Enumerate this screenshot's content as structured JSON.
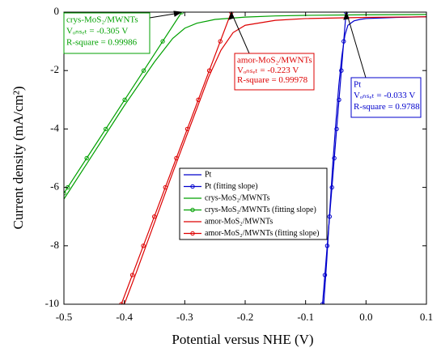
{
  "chart_data": {
    "type": "line",
    "xlabel": "Potential versus NHE (V)",
    "ylabel": "Current density (mA/cm²)",
    "xlim": [
      -0.5,
      0.1
    ],
    "xticks": [
      -0.5,
      -0.4,
      -0.3,
      -0.2,
      -0.1,
      {
        "value": 0,
        "label": "0.0"
      },
      0.1
    ],
    "ylim": [
      -10,
      0
    ],
    "yticks": [
      -10,
      -8,
      -6,
      -4,
      -2,
      0
    ],
    "series": [
      {
        "name": "Pt",
        "color": "#0000cc",
        "x": [
          -0.07,
          -0.065,
          -0.06,
          -0.055,
          -0.05,
          -0.045,
          -0.04,
          -0.035,
          -0.03,
          -0.02,
          -0.01,
          0,
          0.05,
          0.1
        ],
        "values": [
          -10,
          -8.5,
          -6.8,
          -5.2,
          -3.8,
          -2.5,
          -1.5,
          -0.8,
          -0.45,
          -0.3,
          -0.25,
          -0.22,
          -0.18,
          -0.16
        ]
      },
      {
        "name": "Pt (fitting slope)",
        "color": "#0000cc",
        "marker": "circle",
        "x": [
          -0.033,
          -0.0369,
          -0.0408,
          -0.0447,
          -0.0486,
          -0.0525,
          -0.0564,
          -0.0603,
          -0.0642,
          -0.0681,
          -0.072
        ],
        "values": [
          0,
          -1,
          -2,
          -3,
          -4,
          -5,
          -6,
          -7,
          -8,
          -9,
          -10
        ]
      },
      {
        "name": "crys-MoS₂/MWNTs",
        "color": "#00a000",
        "x": [
          -0.5,
          -0.45,
          -0.4,
          -0.35,
          -0.32,
          -0.3,
          -0.28,
          -0.25,
          -0.2,
          -0.15,
          -0.1,
          0,
          0.1
        ],
        "values": [
          -6.4,
          -4.8,
          -3.2,
          -1.7,
          -0.9,
          -0.55,
          -0.38,
          -0.25,
          -0.17,
          -0.13,
          -0.11,
          -0.09,
          -0.08
        ]
      },
      {
        "name": "crys-MoS₂/MWNTs (fitting slope)",
        "color": "#00a000",
        "marker": "circle",
        "x": [
          -0.305,
          -0.3365,
          -0.3679,
          -0.3994,
          -0.4308,
          -0.4623,
          -0.4937,
          -0.5
        ],
        "values": [
          0,
          -1,
          -2,
          -3,
          -4,
          -5,
          -6,
          -6.2
        ]
      },
      {
        "name": "amor-MoS₂/MWNTs",
        "color": "#dd0000",
        "x": [
          -0.4,
          -0.38,
          -0.35,
          -0.32,
          -0.3,
          -0.28,
          -0.26,
          -0.24,
          -0.22,
          -0.2,
          -0.15,
          -0.1,
          0,
          0.1
        ],
        "values": [
          -10,
          -8.9,
          -7.2,
          -5.5,
          -4.4,
          -3.3,
          -2.2,
          -1.3,
          -0.7,
          -0.45,
          -0.28,
          -0.22,
          -0.18,
          -0.16
        ]
      },
      {
        "name": "amor-MoS₂/MWNTs (fitting slope)",
        "color": "#dd0000",
        "marker": "circle",
        "x": [
          -0.223,
          -0.2412,
          -0.2594,
          -0.2776,
          -0.2958,
          -0.314,
          -0.3322,
          -0.3504,
          -0.3686,
          -0.3868,
          -0.405
        ],
        "values": [
          0,
          -1,
          -2,
          -3,
          -4,
          -5,
          -6,
          -7,
          -8,
          -9,
          -10
        ]
      }
    ],
    "annotations": [
      {
        "color": "#00a000",
        "lines": [
          "crys-MoS₂/MWNTs",
          "Vₒₙₛₑₜ = -0.305 V",
          "R-square = 0.99986"
        ]
      },
      {
        "color": "#dd0000",
        "lines": [
          "amor-MoS₂/MWNTs",
          "Vₒₙₛₑₜ = -0.223 V",
          "R-square = 0.99978"
        ]
      },
      {
        "color": "#0000cc",
        "lines": [
          "Pt",
          "Vₒₙₛₑₜ = -0.033 V",
          "R-square = 0.9788"
        ]
      }
    ]
  }
}
